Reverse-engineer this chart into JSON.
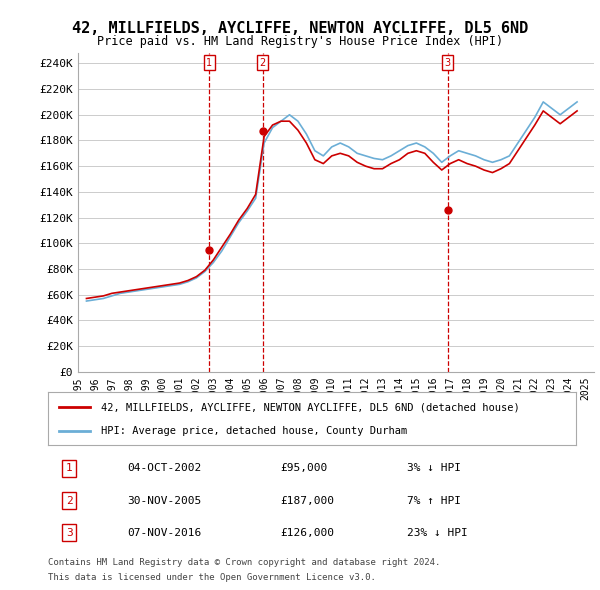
{
  "title": "42, MILLFIELDS, AYCLIFFE, NEWTON AYCLIFFE, DL5 6ND",
  "subtitle": "Price paid vs. HM Land Registry's House Price Index (HPI)",
  "ylabel_ticks": [
    "£0",
    "£20K",
    "£40K",
    "£60K",
    "£80K",
    "£100K",
    "£120K",
    "£140K",
    "£160K",
    "£180K",
    "£200K",
    "£220K",
    "£240K"
  ],
  "ytick_values": [
    0,
    20000,
    40000,
    60000,
    80000,
    100000,
    120000,
    140000,
    160000,
    180000,
    200000,
    220000,
    240000
  ],
  "ylim": [
    0,
    248000
  ],
  "xlim_start": 1995.0,
  "xlim_end": 2025.5,
  "legend1_label": "42, MILLFIELDS, AYCLIFFE, NEWTON AYCLIFFE, DL5 6ND (detached house)",
  "legend2_label": "HPI: Average price, detached house, County Durham",
  "sale1_date": "04-OCT-2002",
  "sale1_price": 95000,
  "sale1_label": "3% ↓ HPI",
  "sale2_date": "30-NOV-2005",
  "sale2_price": 187000,
  "sale2_label": "7% ↑ HPI",
  "sale3_date": "07-NOV-2016",
  "sale3_price": 126000,
  "sale3_label": "23% ↓ HPI",
  "sale1_x": 2002.75,
  "sale2_x": 2005.92,
  "sale3_x": 2016.85,
  "footer1": "Contains HM Land Registry data © Crown copyright and database right 2024.",
  "footer2": "This data is licensed under the Open Government Licence v3.0.",
  "hpi_color": "#6baed6",
  "price_color": "#cc0000",
  "marker_box_color": "#cc0000",
  "bg_color": "#ffffff",
  "grid_color": "#cccccc",
  "hpi_data": {
    "years": [
      1995.5,
      1996.0,
      1996.5,
      1997.0,
      1997.5,
      1998.0,
      1998.5,
      1999.0,
      1999.5,
      2000.0,
      2000.5,
      2001.0,
      2001.5,
      2002.0,
      2002.5,
      2003.0,
      2003.5,
      2004.0,
      2004.5,
      2005.0,
      2005.5,
      2006.0,
      2006.5,
      2007.0,
      2007.5,
      2008.0,
      2008.5,
      2009.0,
      2009.5,
      2010.0,
      2010.5,
      2011.0,
      2011.5,
      2012.0,
      2012.5,
      2013.0,
      2013.5,
      2014.0,
      2014.5,
      2015.0,
      2015.5,
      2016.0,
      2016.5,
      2017.0,
      2017.5,
      2018.0,
      2018.5,
      2019.0,
      2019.5,
      2020.0,
      2020.5,
      2021.0,
      2021.5,
      2022.0,
      2022.5,
      2023.0,
      2023.5,
      2024.0,
      2024.5
    ],
    "values": [
      55000,
      56000,
      57000,
      59000,
      61000,
      62000,
      63000,
      64000,
      65000,
      66000,
      67000,
      68000,
      70000,
      73000,
      78000,
      85000,
      94000,
      105000,
      116000,
      125000,
      135000,
      178000,
      190000,
      195000,
      200000,
      195000,
      185000,
      172000,
      168000,
      175000,
      178000,
      175000,
      170000,
      168000,
      166000,
      165000,
      168000,
      172000,
      176000,
      178000,
      175000,
      170000,
      163000,
      168000,
      172000,
      170000,
      168000,
      165000,
      163000,
      165000,
      168000,
      178000,
      188000,
      198000,
      210000,
      205000,
      200000,
      205000,
      210000
    ]
  },
  "price_data": {
    "years": [
      1995.5,
      1996.0,
      1996.5,
      1997.0,
      1997.5,
      1998.0,
      1998.5,
      1999.0,
      1999.5,
      2000.0,
      2000.5,
      2001.0,
      2001.5,
      2002.0,
      2002.5,
      2003.0,
      2003.5,
      2004.0,
      2004.5,
      2005.0,
      2005.5,
      2006.0,
      2006.5,
      2007.0,
      2007.5,
      2008.0,
      2008.5,
      2009.0,
      2009.5,
      2010.0,
      2010.5,
      2011.0,
      2011.5,
      2012.0,
      2012.5,
      2013.0,
      2013.5,
      2014.0,
      2014.5,
      2015.0,
      2015.5,
      2016.0,
      2016.5,
      2017.0,
      2017.5,
      2018.0,
      2018.5,
      2019.0,
      2019.5,
      2020.0,
      2020.5,
      2021.0,
      2021.5,
      2022.0,
      2022.5,
      2023.0,
      2023.5,
      2024.0,
      2024.5
    ],
    "values": [
      57000,
      58000,
      59000,
      61000,
      62000,
      63000,
      64000,
      65000,
      66000,
      67000,
      68000,
      69000,
      71000,
      74000,
      79000,
      87000,
      97000,
      107000,
      118000,
      127000,
      138000,
      183000,
      192000,
      195000,
      195000,
      188000,
      178000,
      165000,
      162000,
      168000,
      170000,
      168000,
      163000,
      160000,
      158000,
      158000,
      162000,
      165000,
      170000,
      172000,
      170000,
      163000,
      157000,
      162000,
      165000,
      162000,
      160000,
      157000,
      155000,
      158000,
      162000,
      172000,
      182000,
      192000,
      203000,
      198000,
      193000,
      198000,
      203000
    ]
  },
  "xtick_years": [
    1995,
    1996,
    1997,
    1998,
    1999,
    2000,
    2001,
    2002,
    2003,
    2004,
    2005,
    2006,
    2007,
    2008,
    2009,
    2010,
    2011,
    2012,
    2013,
    2014,
    2015,
    2016,
    2017,
    2018,
    2019,
    2020,
    2021,
    2022,
    2023,
    2024,
    2025
  ]
}
